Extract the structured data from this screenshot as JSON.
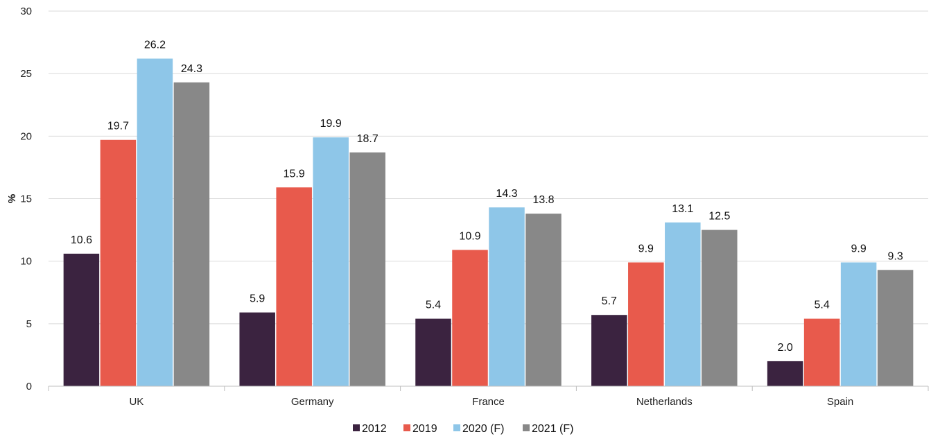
{
  "chart_data": {
    "type": "bar",
    "title": "",
    "xlabel": "",
    "ylabel": "%",
    "ylim": [
      0,
      30
    ],
    "yticks": [
      0,
      5,
      10,
      15,
      20,
      25,
      30
    ],
    "grid": true,
    "legend_position": "bottom",
    "categories": [
      "UK",
      "Germany",
      "France",
      "Netherlands",
      "Spain"
    ],
    "series": [
      {
        "name": "2012",
        "color": "#3b2340",
        "values": [
          10.6,
          5.9,
          5.4,
          5.7,
          2.0
        ],
        "labels": [
          "10.6",
          "5.9",
          "5.4",
          "5.7",
          "2.0"
        ]
      },
      {
        "name": "2019",
        "color": "#e85a4c",
        "values": [
          19.7,
          15.9,
          10.9,
          9.9,
          5.4
        ],
        "labels": [
          "19.7",
          "15.9",
          "10.9",
          "9.9",
          "5.4"
        ]
      },
      {
        "name": "2020 (F)",
        "color": "#8ec6e8",
        "values": [
          26.2,
          19.9,
          14.3,
          13.1,
          9.9
        ],
        "labels": [
          "26.2",
          "19.9",
          "14.3",
          "13.1",
          "9.9"
        ]
      },
      {
        "name": "2021 (F)",
        "color": "#888888",
        "values": [
          24.3,
          18.7,
          13.8,
          12.5,
          9.3
        ],
        "labels": [
          "24.3",
          "18.7",
          "13.8",
          "12.5",
          "9.3"
        ]
      }
    ]
  }
}
